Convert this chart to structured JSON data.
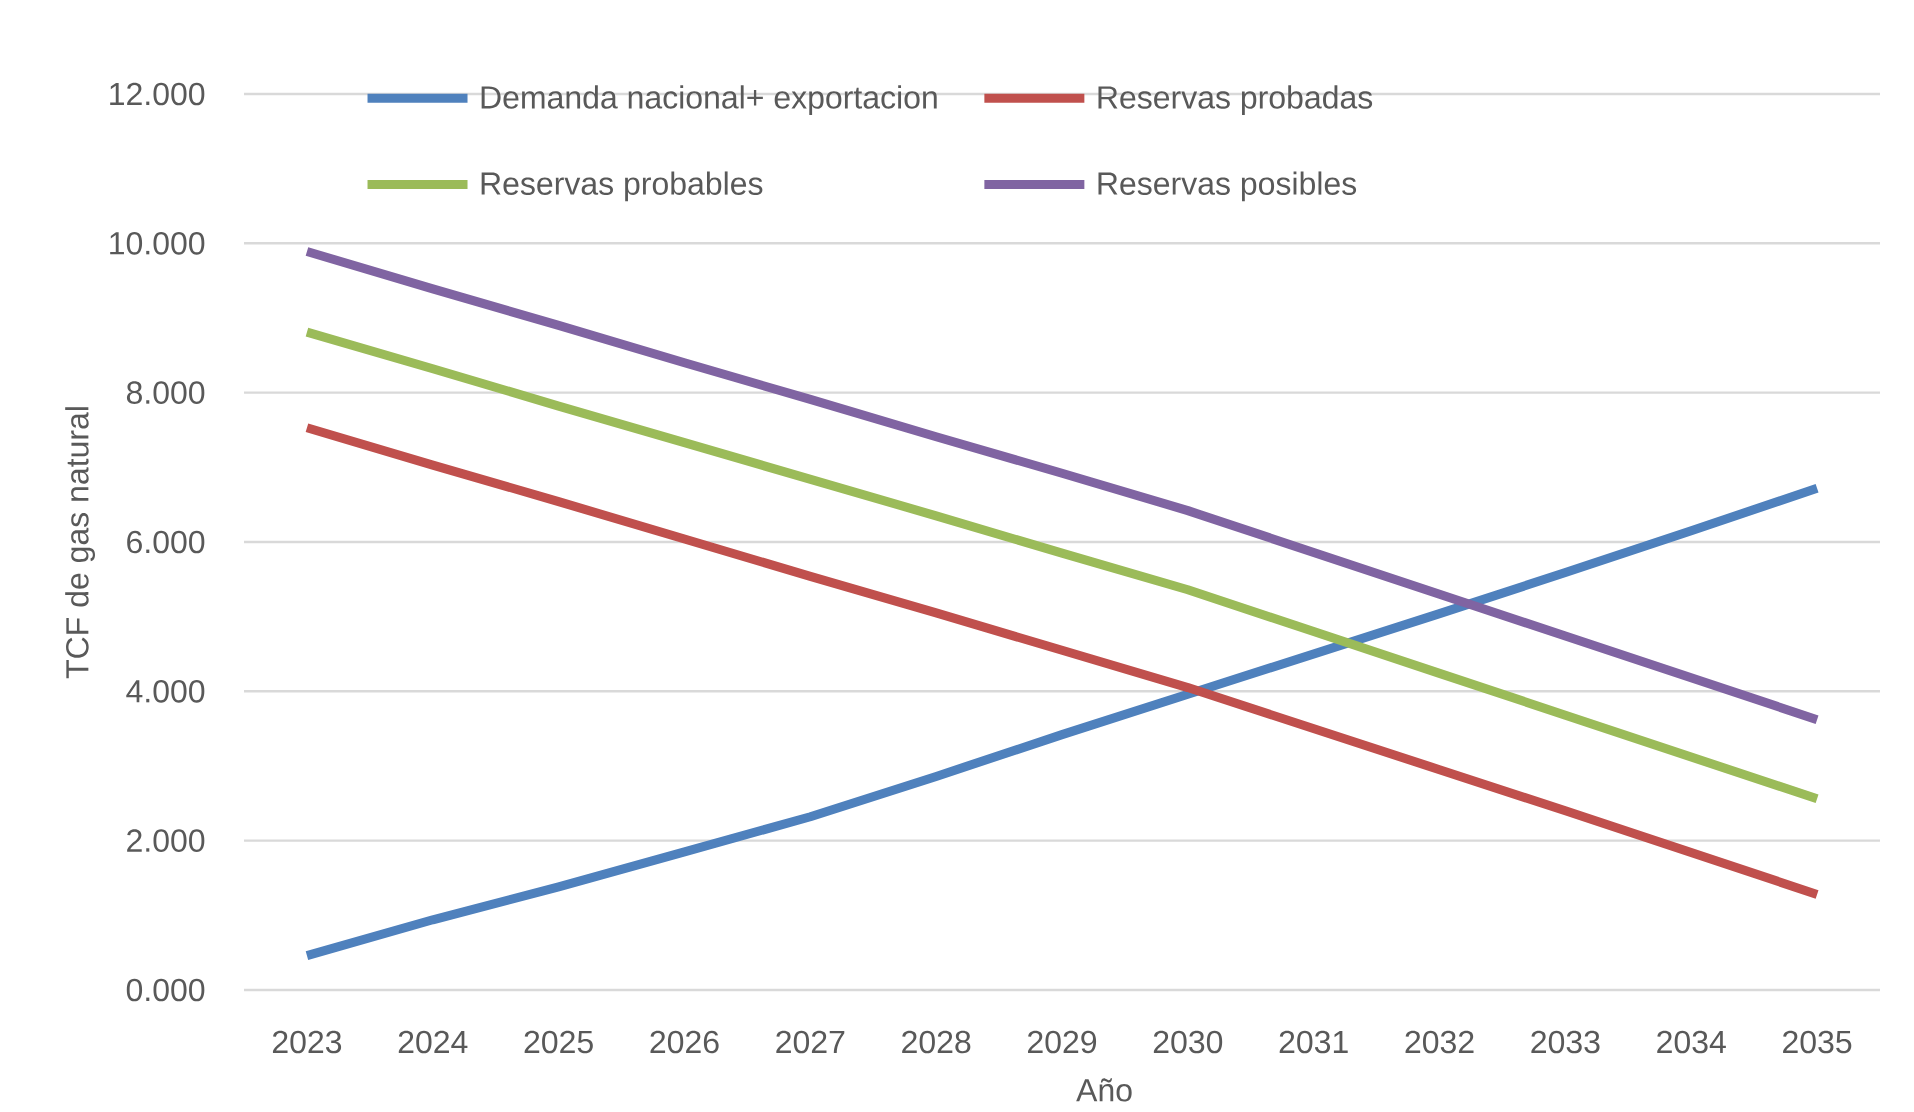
{
  "chart_data": {
    "type": "line",
    "xlabel": "Año",
    "ylabel": "TCF de gas natural",
    "categories": [
      "2023",
      "2024",
      "2025",
      "2026",
      "2027",
      "2028",
      "2029",
      "2030",
      "2031",
      "2032",
      "2033",
      "2034",
      "2035"
    ],
    "ylim": [
      0,
      12
    ],
    "yticks": [
      {
        "value": 0,
        "label": "0.000"
      },
      {
        "value": 2,
        "label": "2.000"
      },
      {
        "value": 4,
        "label": "4.000"
      },
      {
        "value": 6,
        "label": "6.000"
      },
      {
        "value": 8,
        "label": "8.000"
      },
      {
        "value": 10,
        "label": "10.000"
      },
      {
        "value": 12,
        "label": "12.000"
      }
    ],
    "grid": "y",
    "legend": "top",
    "marker": "none",
    "line_style": "solid",
    "series": [
      {
        "name": "Demanda nacional+ exportacion",
        "color": "#4f81bd",
        "values": [
          0.46,
          0.94,
          1.38,
          1.85,
          2.32,
          2.86,
          3.42,
          3.96,
          4.5,
          5.04,
          5.59,
          6.15,
          6.72
        ]
      },
      {
        "name": "Reservas probadas",
        "color": "#c0504d",
        "values": [
          7.53,
          7.03,
          6.54,
          6.04,
          5.54,
          5.05,
          4.55,
          4.05,
          3.5,
          2.95,
          2.4,
          1.84,
          1.28
        ]
      },
      {
        "name": "Reservas probables",
        "color": "#9bbb59",
        "values": [
          8.81,
          8.32,
          7.82,
          7.33,
          6.84,
          6.35,
          5.85,
          5.36,
          4.8,
          4.24,
          3.68,
          3.12,
          2.56
        ]
      },
      {
        "name": "Reservas posibles",
        "color": "#8064a2",
        "values": [
          9.89,
          9.39,
          8.9,
          8.4,
          7.91,
          7.41,
          6.92,
          6.42,
          5.86,
          5.3,
          4.74,
          4.18,
          3.62
        ]
      }
    ]
  }
}
